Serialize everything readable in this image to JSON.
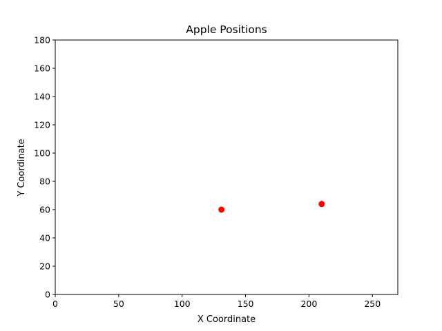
{
  "chart_data": {
    "type": "scatter",
    "title": "Apple Positions",
    "xlabel": "X Coordinate",
    "ylabel": "Y Coordinate",
    "xlim": [
      0,
      270
    ],
    "ylim": [
      0,
      180
    ],
    "xticks": [
      0,
      50,
      100,
      150,
      200,
      250
    ],
    "yticks": [
      0,
      20,
      40,
      60,
      80,
      100,
      120,
      140,
      160,
      180
    ],
    "grid": false,
    "series": [
      {
        "points": [
          {
            "x": 131,
            "y": 60
          },
          {
            "x": 210,
            "y": 64
          }
        ],
        "color": "#ff0000"
      }
    ]
  }
}
